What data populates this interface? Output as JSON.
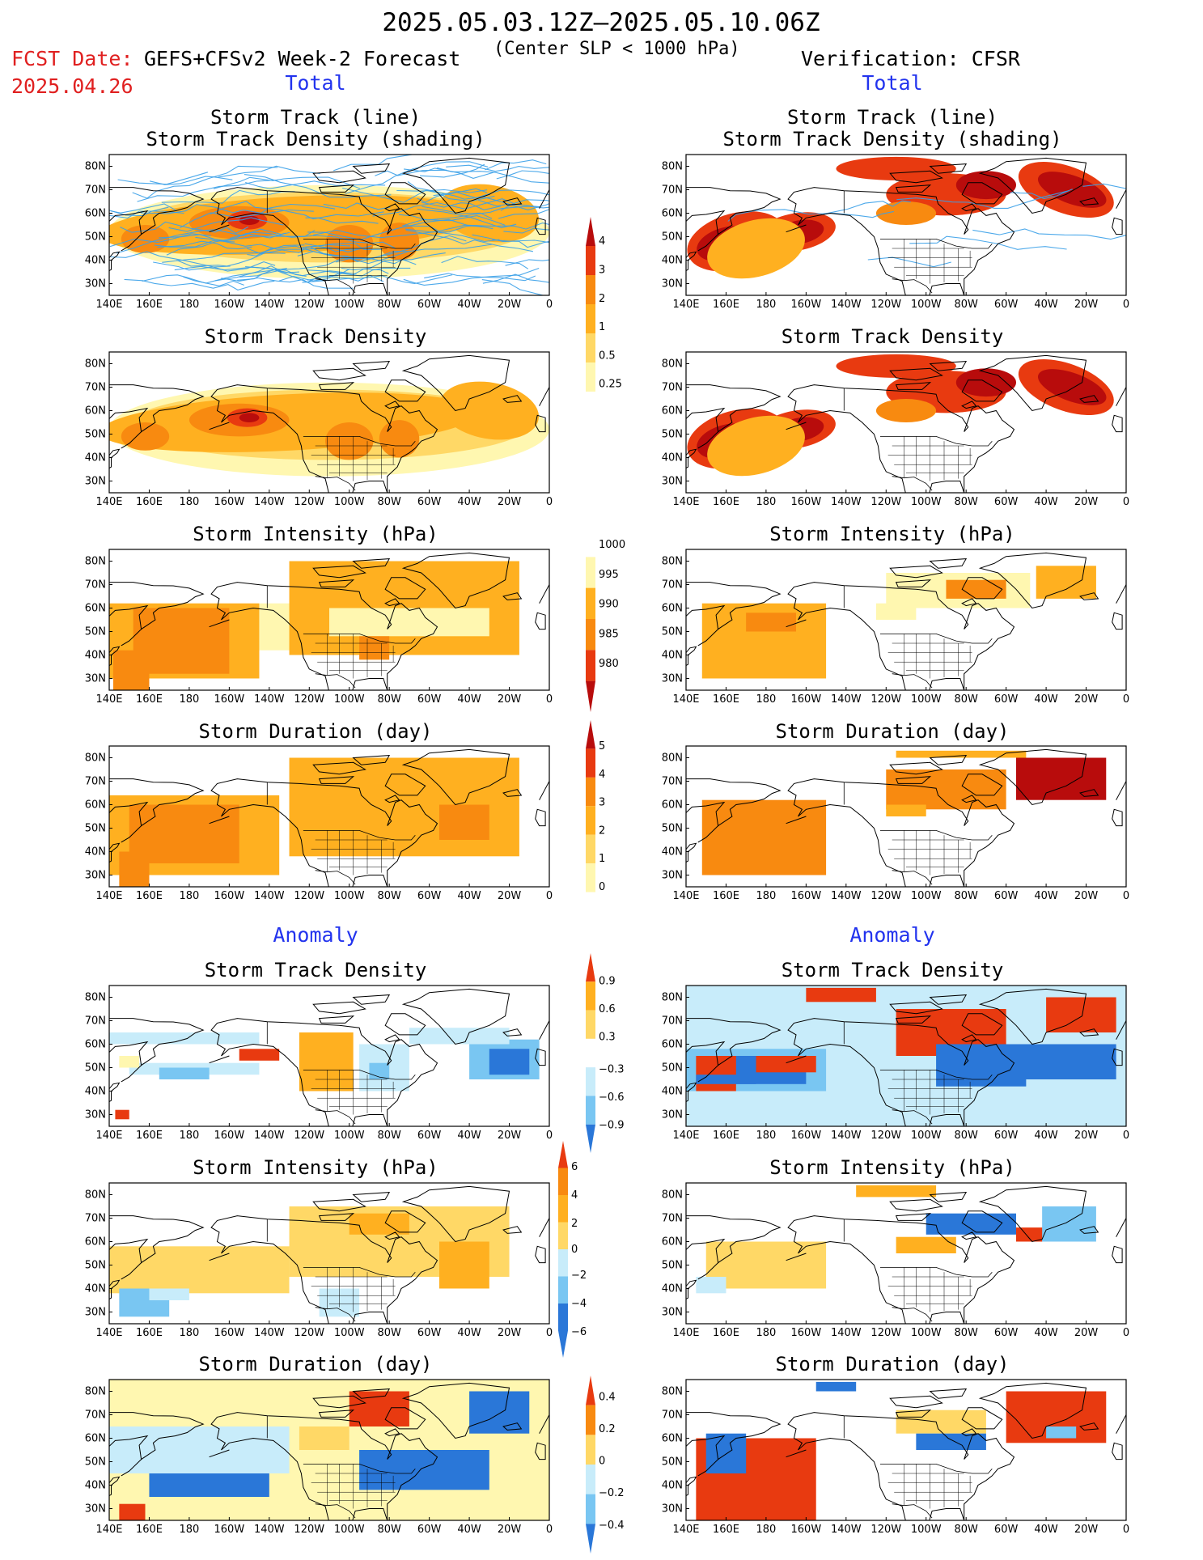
{
  "header": {
    "title": "2025.05.03.12Z–2025.05.10.06Z",
    "fcst_date_label": "FCST Date:",
    "fcst_date_value": "2025.04.26",
    "forecast_name": "GEFS+CFSv2 Week-2 Forecast",
    "forecast_subtitle": "(Center SLP < 1000 hPa)",
    "verification": "Verification: CFSR"
  },
  "sections": {
    "total_left": "Total",
    "total_right": "Total",
    "anomaly_left": "Anomaly",
    "anomaly_right": "Anomaly"
  },
  "panel_titles": {
    "track_line": "Storm Track (line)",
    "track_shading": "Storm Track Density (shading)",
    "density": "Storm Track Density",
    "intensity": "Storm Intensity (hPa)",
    "duration": "Storm Duration (day)"
  },
  "axes": {
    "lon_labels": [
      "140E",
      "160E",
      "180",
      "160W",
      "140W",
      "120W",
      "100W",
      "80W",
      "60W",
      "40W",
      "20W",
      "0"
    ],
    "lat_labels": [
      "80N",
      "70N",
      "60N",
      "50N",
      "40N",
      "30N"
    ]
  },
  "colorbars": {
    "density_total": [
      "4",
      "3",
      "2",
      "1",
      "0.5",
      "0.25"
    ],
    "intensity_total": [
      "1000",
      "995",
      "990",
      "985",
      "980"
    ],
    "duration_total": [
      "5",
      "4",
      "3",
      "2",
      "1",
      "0"
    ],
    "density_anom": [
      "0.9",
      "0.6",
      "0.3",
      "−0.3",
      "−0.6",
      "−0.9"
    ],
    "intensity_anom": [
      "6",
      "4",
      "2",
      "0",
      "−2",
      "−4",
      "−6"
    ],
    "duration_anom": [
      "0.4",
      "0.2",
      "0",
      "−0.2",
      "−0.4"
    ]
  },
  "palette": {
    "warm_lightest": "#fff7b0",
    "warm_light": "#ffd866",
    "warm_mid": "#ffb020",
    "warm_orange": "#f88a10",
    "warm_red": "#e83a10",
    "warm_dark": "#b80c0c",
    "cool_light": "#c8ecfa",
    "cool_mid": "#79c6f2",
    "cool_dark": "#2a77d8",
    "track_line": "#3aa0e8",
    "coast": "#000000"
  }
}
